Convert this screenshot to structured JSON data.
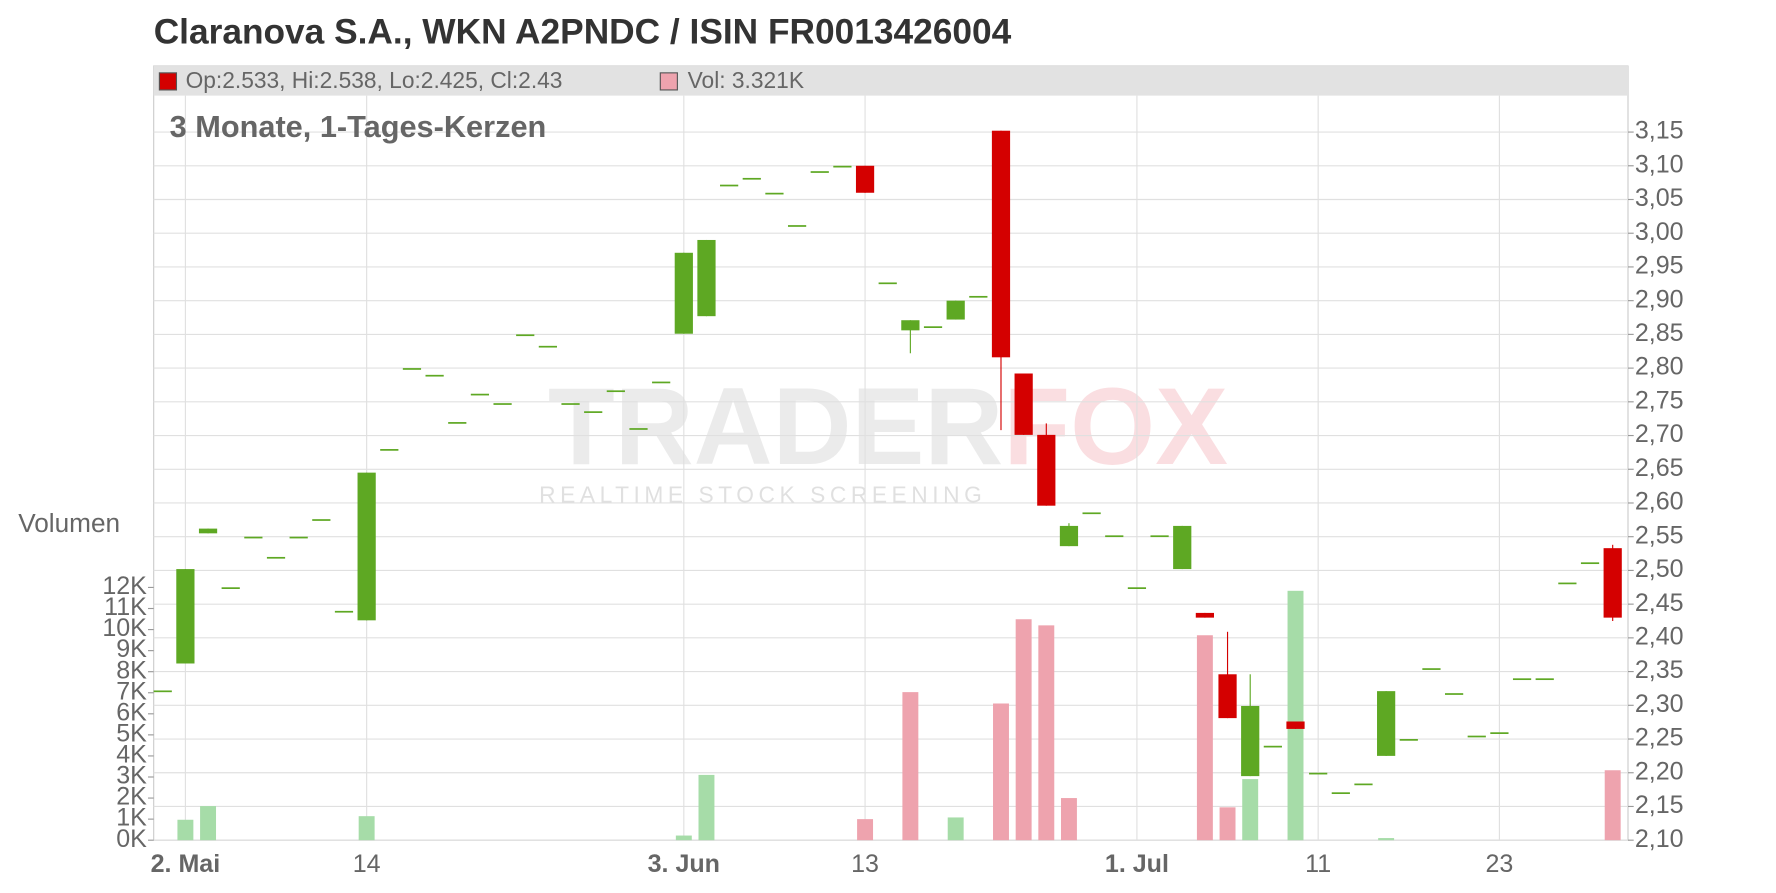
{
  "chart_data": {
    "type": "candlestick",
    "title": "Claranova S.A., WKN A2PNDC / ISIN FR0013426004",
    "subtitle": "3 Monate, 1-Tages-Kerzen",
    "legend_price": "Op:2.533, Hi:2.538, Lo:2.425, Cl:2.43",
    "legend_volume": "Vol: 3.321K",
    "volume_axis_label": "Volumen",
    "watermark_left": "TRADER",
    "watermark_right": "FOX",
    "watermark_tagline": "REALTIME STOCK SCREENING",
    "color_up": "#5ea823",
    "color_down": "#d40000",
    "volume_color_up": "#a6dca8",
    "volume_color_down": "#eea3ae",
    "grid": true,
    "categories": [
      null,
      "2. Mai",
      null,
      null,
      null,
      null,
      null,
      null,
      null,
      "14",
      null,
      null,
      null,
      null,
      null,
      null,
      null,
      null,
      null,
      null,
      null,
      null,
      null,
      "3. Jun",
      null,
      null,
      null,
      null,
      null,
      null,
      null,
      "13",
      null,
      null,
      null,
      null,
      null,
      null,
      null,
      null,
      null,
      null,
      null,
      "1. Jul",
      null,
      null,
      null,
      null,
      null,
      null,
      null,
      "11",
      null,
      null,
      null,
      null,
      null,
      null,
      null,
      "23",
      null,
      null,
      null,
      null,
      null
    ],
    "open": [
      2.322,
      2.362,
      2.555,
      2.475,
      2.55,
      2.52,
      2.55,
      2.576,
      2.44,
      2.426,
      2.68,
      2.8,
      2.79,
      2.72,
      2.762,
      2.748,
      2.85,
      2.833,
      2.748,
      2.736,
      2.767,
      2.711,
      2.78,
      2.851,
      2.877,
      3.072,
      3.082,
      3.06,
      3.012,
      3.092,
      3.1,
      3.1,
      2.927,
      2.856,
      2.862,
      2.872,
      2.907,
      3.152,
      2.792,
      2.701,
      2.536,
      2.586,
      2.552,
      2.475,
      2.552,
      2.502,
      2.437,
      2.346,
      2.195,
      2.24,
      2.276,
      2.2,
      2.171,
      2.184,
      2.225,
      2.25,
      2.355,
      2.318,
      2.255,
      2.26,
      2.34,
      2.34,
      2.482,
      2.512,
      2.533
    ],
    "high": [
      2.322,
      2.502,
      2.562,
      2.475,
      2.55,
      2.52,
      2.55,
      2.576,
      2.44,
      2.645,
      2.68,
      2.8,
      2.79,
      2.72,
      2.762,
      2.748,
      2.85,
      2.833,
      2.748,
      2.736,
      2.767,
      2.711,
      2.78,
      2.971,
      2.99,
      3.072,
      3.082,
      3.06,
      3.012,
      3.092,
      3.1,
      3.1,
      2.927,
      2.871,
      2.862,
      2.9,
      2.907,
      3.152,
      2.792,
      2.718,
      2.57,
      2.586,
      2.552,
      2.475,
      2.552,
      2.566,
      2.437,
      2.409,
      2.346,
      2.24,
      2.276,
      2.2,
      2.171,
      2.184,
      2.321,
      2.25,
      2.355,
      2.318,
      2.255,
      2.26,
      2.34,
      2.34,
      2.482,
      2.512,
      2.538
    ],
    "low": [
      2.322,
      2.362,
      2.555,
      2.475,
      2.55,
      2.52,
      2.55,
      2.576,
      2.44,
      2.426,
      2.68,
      2.8,
      2.79,
      2.72,
      2.762,
      2.748,
      2.85,
      2.833,
      2.748,
      2.736,
      2.767,
      2.711,
      2.78,
      2.851,
      2.877,
      3.072,
      3.082,
      3.06,
      3.012,
      3.092,
      3.1,
      3.06,
      2.927,
      2.822,
      2.862,
      2.872,
      2.907,
      2.708,
      2.701,
      2.596,
      2.536,
      2.586,
      2.552,
      2.475,
      2.552,
      2.502,
      2.43,
      2.281,
      2.195,
      2.24,
      2.265,
      2.2,
      2.171,
      2.184,
      2.225,
      2.25,
      2.355,
      2.318,
      2.255,
      2.26,
      2.34,
      2.34,
      2.482,
      2.512,
      2.425
    ],
    "close": [
      2.322,
      2.502,
      2.562,
      2.475,
      2.55,
      2.52,
      2.55,
      2.576,
      2.44,
      2.645,
      2.68,
      2.8,
      2.79,
      2.72,
      2.762,
      2.748,
      2.85,
      2.833,
      2.748,
      2.736,
      2.767,
      2.711,
      2.78,
      2.971,
      2.99,
      3.072,
      3.082,
      3.06,
      3.012,
      3.092,
      3.1,
      3.06,
      2.927,
      2.871,
      2.862,
      2.9,
      2.907,
      2.816,
      2.701,
      2.596,
      2.566,
      2.586,
      2.552,
      2.475,
      2.552,
      2.566,
      2.43,
      2.281,
      2.299,
      2.24,
      2.265,
      2.2,
      2.171,
      2.184,
      2.321,
      2.25,
      2.355,
      2.318,
      2.255,
      2.26,
      2.34,
      2.34,
      2.482,
      2.512,
      2.43
    ],
    "volume": [
      0,
      0.97,
      1.62,
      0,
      0,
      0,
      0,
      0,
      0,
      1.14,
      0,
      0,
      0,
      0,
      0,
      0,
      0,
      0,
      0,
      0,
      0,
      0,
      0,
      0.22,
      3.1,
      0,
      0,
      0,
      0,
      0,
      0,
      1.0,
      0,
      7.03,
      0,
      1.08,
      0,
      6.49,
      10.49,
      10.2,
      2.0,
      0,
      0,
      0,
      0,
      0,
      9.73,
      1.56,
      2.9,
      0,
      11.84,
      0,
      0,
      0,
      0.1,
      0,
      0,
      0,
      0,
      0,
      0,
      0,
      0,
      0,
      3.321
    ],
    "ylim": [
      2.1,
      3.15
    ],
    "yticks": [
      {
        "value": 2.1,
        "label": "2,10"
      },
      {
        "value": 2.15,
        "label": "2,15"
      },
      {
        "value": 2.2,
        "label": "2,20"
      },
      {
        "value": 2.25,
        "label": "2,25"
      },
      {
        "value": 2.3,
        "label": "2,30"
      },
      {
        "value": 2.35,
        "label": "2,35"
      },
      {
        "value": 2.4,
        "label": "2,40"
      },
      {
        "value": 2.45,
        "label": "2,45"
      },
      {
        "value": 2.5,
        "label": "2,50"
      },
      {
        "value": 2.55,
        "label": "2,55"
      },
      {
        "value": 2.6,
        "label": "2,60"
      },
      {
        "value": 2.65,
        "label": "2,65"
      },
      {
        "value": 2.7,
        "label": "2,70"
      },
      {
        "value": 2.75,
        "label": "2,75"
      },
      {
        "value": 2.8,
        "label": "2,80"
      },
      {
        "value": 2.85,
        "label": "2,85"
      },
      {
        "value": 2.9,
        "label": "2,90"
      },
      {
        "value": 2.95,
        "label": "2,95"
      },
      {
        "value": 3.0,
        "label": "3,00"
      },
      {
        "value": 3.05,
        "label": "3,05"
      },
      {
        "value": 3.1,
        "label": "3,10"
      },
      {
        "value": 3.15,
        "label": "3,15"
      }
    ],
    "y2lim": [
      0,
      12
    ],
    "y2ticks": [
      {
        "value": 0,
        "label": "0K"
      },
      {
        "value": 1,
        "label": "1K"
      },
      {
        "value": 2,
        "label": "2K"
      },
      {
        "value": 3,
        "label": "3K"
      },
      {
        "value": 4,
        "label": "4K"
      },
      {
        "value": 5,
        "label": "5K"
      },
      {
        "value": 6,
        "label": "6K"
      },
      {
        "value": 7,
        "label": "7K"
      },
      {
        "value": 8,
        "label": "8K"
      },
      {
        "value": 9,
        "label": "9K"
      },
      {
        "value": 10,
        "label": "10K"
      },
      {
        "value": 11,
        "label": "11K"
      },
      {
        "value": 12,
        "label": "12K"
      }
    ]
  }
}
